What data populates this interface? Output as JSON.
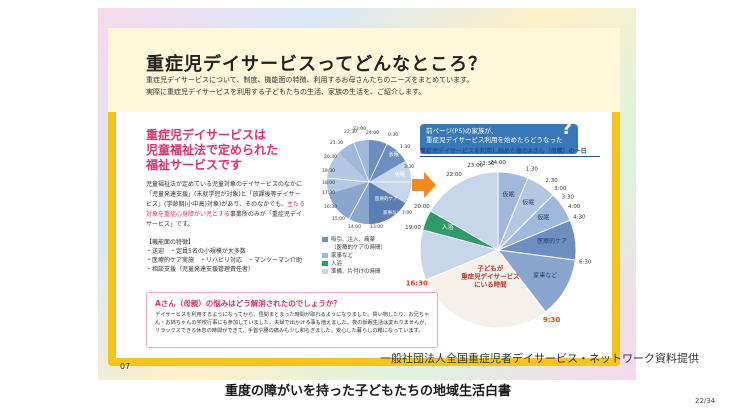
{
  "page": {
    "counter": "22/34"
  },
  "brochure": {
    "title": "重症児デイサービスってどんなところ？",
    "intro_lines": [
      "重症児デイサービスについて、制度、機能面の特徴、利用するお母さんたちのニーズをまとめています。",
      "実際に重症児デイサービスを利用する子どもたちの生活、家族の生活を、ご紹介します。"
    ],
    "left_heading_lines": [
      "重症児デイサービスは",
      "児童福祉法で定められた",
      "福祉サービスです"
    ],
    "left_body_1": "児童福祉法が定めている児童対象のデイサービスのなかに「児童発達支援」(未就学児が対象)と「放課後等デイサービス」(学齢期(小中高)対象)があり、そのなかでも、",
    "left_body_highlight": "主たる対象を重症心身障がい児とする",
    "left_body_2": "事業所のみが「重症児デイサービス」です。",
    "features_title": "【機能面の特徴】",
    "features": [
      "・送迎　・定員5名の小規模が大多数",
      "・医療的ケア実施　・リハビリ対応　・マンツーマン介助",
      "・相談支援（児童発達支援管理責任者）"
    ],
    "bubble_lines": [
      "前ページ(P5)の家族が、",
      "重症児デイサービス利用を始めたらどうなった"
    ],
    "bubble_q": "?",
    "sublabel": "重症児デイサービスを利用し始めた後のAさん（母親）の一日",
    "legend": [
      {
        "label": "吸引、注入、痛薬",
        "color": "#6d8fbf"
      },
      {
        "label": "（医療的ケアの時間）",
        "color": "#ffffff"
      },
      {
        "label": "家事など",
        "color": "#9fb8db"
      },
      {
        "label": "入浴",
        "color": "#2f9b6b"
      },
      {
        "label": "準備、片付けの時間",
        "color": "#c8d6ea"
      }
    ],
    "worry_title": "Aさん（母親）の悩みはどう解消されたのでしょうか？",
    "worry_body": "デイサービスを利用するようになってから、昼間まとまった時間が取れるようになりました。買い物したり、お兄ちゃん・お姉ちゃんの学校行事にも参加していました。夫婦で出かける事も増えました。夜の仮眠生活は変わりませんが、リラックスできる休息の時間ができて、手首や腰の痛みも少し和らぎました。安心した暮らしの糧になっています。",
    "page_number": "07",
    "bottom_title": "重度の障がいを持った子どもたちの地域生活白書"
  },
  "credit": "一般社団法人全国重症児者デイサービス・ネットワーク資料提供",
  "small_pie_labels": [
    "24:00",
    "22:30",
    "23:00",
    "21:30",
    "20:30",
    "19:30",
    "18:00",
    "17:30",
    "16:30",
    "15:00",
    "14:00",
    "13:00",
    "0:30",
    "1:30",
    "3:30",
    "7:00"
  ],
  "small_pie_segment_labels": [
    "仮眠",
    "仮眠",
    "医療的ケア",
    "家事など"
  ],
  "chart_data": {
    "type": "pie",
    "title": "重症児デイサービスを利用し始めた後のAさん（母親）の一日",
    "time_labels": [
      "24:00",
      "23:30",
      "23:00",
      "22:00",
      "20:00",
      "19:00",
      "16:30",
      "9:30",
      "6:30",
      "4:30",
      "4:00",
      "3:30",
      "3:00",
      "2:30",
      "1:30"
    ],
    "segments": [
      {
        "label": "仮眠",
        "start": "0:00",
        "end": "1:30",
        "hours": 1.5
      },
      {
        "label": "仮眠",
        "start": "1:30",
        "end": "3:00",
        "hours": 1.5
      },
      {
        "label": "仮眠",
        "start": "3:00",
        "end": "4:30",
        "hours": 1.5
      },
      {
        "label": "医療的ケア",
        "start": "4:30",
        "end": "6:30",
        "hours": 2
      },
      {
        "label": "家事など",
        "start": "6:30",
        "end": "9:30",
        "hours": 3
      },
      {
        "label": "子どもが重症児デイサービスにいる時間",
        "start": "9:30",
        "end": "16:30",
        "hours": 7
      },
      {
        "label": "入浴",
        "start": "19:00",
        "end": "20:00",
        "hours": 1
      }
    ],
    "highlight_times": [
      "16:30",
      "9:30"
    ]
  }
}
